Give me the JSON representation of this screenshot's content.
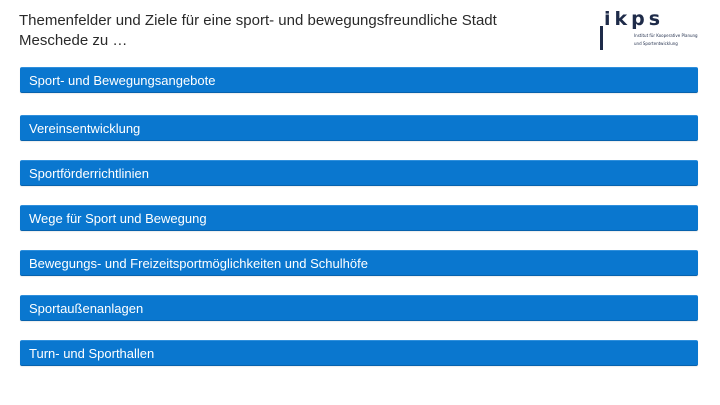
{
  "header": {
    "title_line1": "Themenfelder und Ziele für eine sport- und bewegungsfreundliche Stadt",
    "title_line2": "Meschede zu …"
  },
  "logo": {
    "wordmark": "ikps",
    "tagline_line1": "Institut für Kooperative Planung",
    "tagline_line2": "und Sportentwicklung"
  },
  "colors": {
    "bar_background": "#0a77cf",
    "bar_text": "#ffffff",
    "title_text": "#2a2a2a",
    "logo": "#1e2b49"
  },
  "topics": [
    {
      "label": "Sport- und Bewegungsangebote"
    },
    {
      "label": "Vereinsentwicklung"
    },
    {
      "label": "Sportförderrichtlinien"
    },
    {
      "label": "Wege für Sport und Bewegung"
    },
    {
      "label": "Bewegungs- und Freizeitsportmöglichkeiten und Schulhöfe"
    },
    {
      "label": "Sportaußenanlagen"
    },
    {
      "label": "Turn- und Sporthallen"
    }
  ]
}
